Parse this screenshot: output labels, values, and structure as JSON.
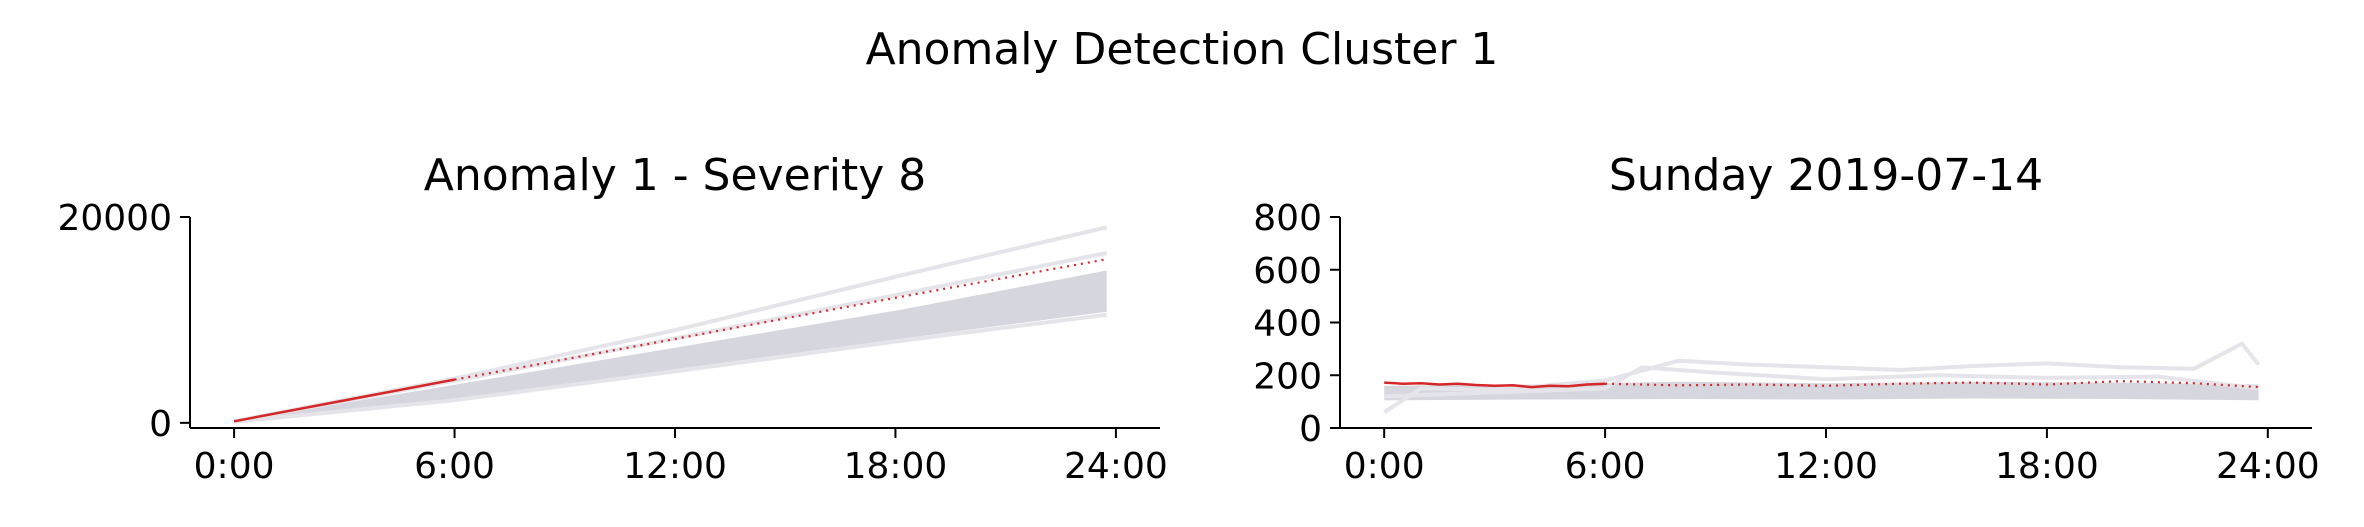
{
  "figure": {
    "suptitle": "Anomaly Detection Cluster 1"
  },
  "colors": {
    "highlight": "#d62728",
    "background_lines": "#c8c8d4",
    "axis": "#000000"
  },
  "chart_data": [
    {
      "type": "line",
      "title": "Anomaly 1 - Severity 8",
      "xlabel": "",
      "ylabel": "",
      "x_ticks": [
        "0:00",
        "6:00",
        "12:00",
        "18:00",
        "24:00"
      ],
      "xlim_hours": [
        -1.2,
        25.2
      ],
      "ylim": [
        -500,
        20000
      ],
      "y_ticks": [
        0,
        20000
      ],
      "y_tick_labels": [
        "0",
        "20000"
      ],
      "grid": false,
      "legend": "none",
      "series": [
        {
          "style": "solid",
          "color": "#d62728",
          "x_hours": [
            0,
            6
          ],
          "y": [
            150,
            4200
          ]
        },
        {
          "style": "dotted",
          "color": "#d62728",
          "x_hours": [
            6,
            12,
            18,
            23.75
          ],
          "y": [
            4200,
            8150,
            12150,
            15900
          ]
        },
        {
          "style": "band",
          "color": "#c8c8d4",
          "x_hours": [
            0,
            6,
            12,
            18,
            23.75
          ],
          "y_low": [
            50,
            2300,
            5200,
            8100,
            10800
          ],
          "y_high": [
            150,
            3700,
            7300,
            10900,
            14800
          ]
        },
        {
          "style": "faint",
          "color": "#e4e4ea",
          "x_hours": [
            0,
            6,
            12,
            18,
            23.75
          ],
          "y": [
            150,
            4300,
            9000,
            14200,
            19000
          ]
        },
        {
          "style": "faint",
          "color": "#e4e4ea",
          "x_hours": [
            0,
            6,
            12,
            18,
            23.75
          ],
          "y": [
            150,
            4100,
            8200,
            12400,
            16500
          ]
        },
        {
          "style": "faint",
          "color": "#e4e4ea",
          "x_hours": [
            0,
            6,
            12,
            18,
            23.75
          ],
          "y": [
            100,
            2200,
            5000,
            7900,
            10500
          ]
        }
      ]
    },
    {
      "type": "line",
      "title": "Sunday 2019-07-14",
      "xlabel": "",
      "ylabel": "",
      "x_ticks": [
        "0:00",
        "6:00",
        "12:00",
        "18:00",
        "24:00"
      ],
      "xlim_hours": [
        -1.2,
        25.2
      ],
      "ylim": [
        0,
        800
      ],
      "y_ticks": [
        0,
        200,
        400,
        600,
        800
      ],
      "y_tick_labels": [
        "0",
        "200",
        "400",
        "600",
        "800"
      ],
      "grid": false,
      "legend": "none",
      "series": [
        {
          "style": "solid",
          "color": "#d62728",
          "x_hours": [
            0,
            0.5,
            1,
            1.5,
            2,
            2.5,
            3,
            3.5,
            4,
            4.5,
            5,
            5.5,
            6
          ],
          "y": [
            172,
            168,
            170,
            165,
            168,
            163,
            160,
            162,
            155,
            160,
            158,
            165,
            168
          ]
        },
        {
          "style": "dotted",
          "color": "#d62728",
          "x_hours": [
            6,
            8,
            10,
            12,
            14,
            16,
            18,
            20,
            22,
            23.75
          ],
          "y": [
            168,
            162,
            165,
            160,
            168,
            172,
            165,
            178,
            170,
            155
          ]
        },
        {
          "style": "band",
          "color": "#c8c8d4",
          "x_hours": [
            0,
            4,
            8,
            12,
            16,
            20,
            23.75
          ],
          "y_low": [
            105,
            108,
            110,
            108,
            112,
            110,
            105
          ],
          "y_high": [
            160,
            165,
            175,
            170,
            175,
            172,
            165
          ]
        },
        {
          "style": "faint",
          "color": "#e4e4ea",
          "x_hours": [
            0,
            1,
            3,
            6,
            8,
            10,
            12,
            14,
            16,
            18,
            20,
            22,
            23.3,
            23.75
          ],
          "y": [
            60,
            150,
            145,
            180,
            255,
            240,
            230,
            220,
            235,
            245,
            230,
            225,
            320,
            240
          ]
        },
        {
          "style": "faint",
          "color": "#e4e4ea",
          "x_hours": [
            0,
            3,
            6,
            7,
            9,
            12,
            15,
            18,
            21,
            23.75
          ],
          "y": [
            120,
            135,
            150,
            230,
            210,
            185,
            200,
            190,
            195,
            150
          ]
        }
      ]
    }
  ]
}
